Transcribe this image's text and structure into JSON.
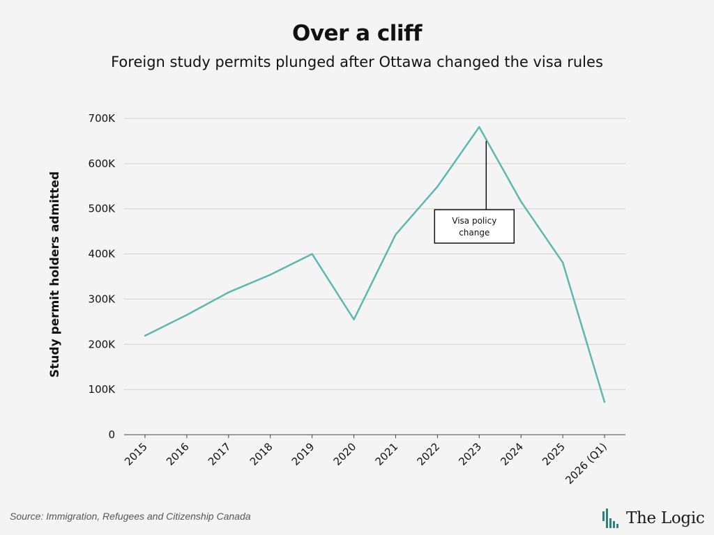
{
  "source": "Source: Immigration, Refugees and Citizenship Canada",
  "brand": {
    "name": "The Logic"
  },
  "colors": {
    "line": "#5bb8b0",
    "grid": "#cfcfcf",
    "background": "#f4f4f4"
  },
  "chart_data": {
    "type": "line",
    "title": "Over a cliff",
    "subtitle": "Foreign study permits plunged after Ottawa changed the visa rules",
    "xlabel": "",
    "ylabel": "Study permit holders admitted",
    "ylim": [
      0,
      700000
    ],
    "yticks": [
      0,
      100000,
      200000,
      300000,
      400000,
      500000,
      600000,
      700000
    ],
    "ytick_labels": [
      "0",
      "100K",
      "200K",
      "300K",
      "400K",
      "500K",
      "600K",
      "700K"
    ],
    "grid": true,
    "categories": [
      "2015",
      "2016",
      "2017",
      "2018",
      "2019",
      "2020",
      "2021",
      "2022",
      "2023",
      "2024",
      "2025",
      "2026 (Q1)"
    ],
    "series": [
      {
        "values": [
          219000,
          265000,
          315000,
          354000,
          400000,
          255000,
          443000,
          549000,
          681000,
          516000,
          381000,
          72000
        ]
      }
    ],
    "annotation": {
      "text_lines": [
        "Visa policy",
        "change"
      ],
      "category": "2023",
      "value": 650000
    }
  }
}
